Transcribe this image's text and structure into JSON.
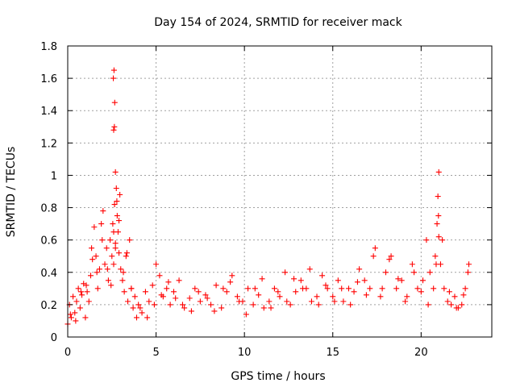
{
  "chart_data": {
    "type": "scatter",
    "title": "Day 154 of 2024, SRMTID for receiver mack",
    "xlabel": "GPS time / hours",
    "ylabel": "SRMTID / TECUs",
    "xlim": [
      0,
      24
    ],
    "ylim": [
      0,
      1.8
    ],
    "xticks": [
      0,
      5,
      10,
      15,
      20
    ],
    "xtick_labels": [
      "0",
      "5",
      "10",
      "15",
      "20"
    ],
    "yticks": [
      0,
      0.2,
      0.4,
      0.6,
      0.8,
      1,
      1.2,
      1.4,
      1.6,
      1.8
    ],
    "ytick_labels": [
      "0",
      "0.2",
      "0.4",
      "0.6",
      "0.8",
      "1",
      "1.2",
      "1.4",
      "1.6",
      "1.8"
    ],
    "grid": true,
    "marker": "+",
    "color": "#ff0000",
    "series": [
      {
        "name": "SRMTID",
        "x": [
          0.0,
          0.1,
          0.2,
          0.3,
          0.4,
          0.5,
          0.6,
          0.7,
          0.8,
          0.9,
          1.0,
          1.1,
          1.2,
          1.3,
          1.4,
          1.5,
          1.6,
          1.7,
          1.8,
          1.9,
          2.0,
          2.1,
          2.2,
          2.3,
          2.4,
          2.5,
          2.55,
          2.6,
          2.65,
          2.7,
          2.75,
          2.8,
          2.85,
          2.9,
          2.95,
          3.0,
          3.1,
          3.2,
          3.3,
          3.4,
          3.5,
          3.6,
          3.7,
          3.8,
          3.9,
          4.0,
          4.2,
          4.4,
          4.6,
          4.8,
          5.0,
          5.2,
          5.4,
          5.6,
          5.8,
          6.0,
          6.3,
          6.6,
          6.9,
          7.2,
          7.5,
          7.8,
          8.1,
          8.4,
          8.7,
          9.0,
          9.3,
          9.6,
          9.9,
          10.2,
          10.5,
          10.8,
          11.1,
          11.4,
          11.7,
          12.0,
          12.3,
          12.6,
          12.9,
          13.2,
          13.5,
          13.8,
          14.1,
          14.4,
          14.7,
          15.0,
          15.3,
          15.6,
          15.9,
          16.2,
          16.5,
          16.8,
          17.1,
          17.4,
          17.7,
          18.0,
          18.3,
          18.6,
          18.9,
          19.2,
          19.5,
          19.8,
          20.1,
          20.3,
          20.5,
          20.7,
          20.8,
          20.9,
          21.0,
          21.1,
          21.3,
          21.5,
          21.7,
          21.9,
          22.1,
          22.3,
          22.5,
          22.7,
          0.15,
          0.45,
          0.75,
          1.05,
          1.35,
          1.65,
          1.95,
          2.25,
          2.45,
          2.6,
          2.7,
          2.9,
          3.15,
          3.35,
          3.6,
          4.1,
          4.5,
          4.9,
          5.3,
          5.7,
          6.1,
          6.5,
          7.0,
          7.4,
          7.9,
          8.3,
          8.8,
          9.2,
          9.7,
          10.1,
          10.6,
          11.0,
          11.5,
          11.9,
          12.4,
          12.8,
          13.3,
          13.7,
          14.2,
          14.6,
          15.1,
          15.5,
          16.0,
          16.4,
          16.9,
          17.3,
          17.8,
          18.2,
          18.7,
          19.1,
          19.6,
          20.0,
          20.4,
          20.85,
          21.2,
          21.6,
          22.0,
          22.4,
          22.65,
          2.58,
          2.62,
          2.66,
          2.64,
          2.6,
          2.7,
          2.78,
          20.95,
          21.0,
          20.98
        ],
        "y": [
          0.08,
          0.2,
          0.12,
          0.25,
          0.15,
          0.22,
          0.3,
          0.18,
          0.26,
          0.33,
          0.12,
          0.28,
          0.22,
          0.38,
          0.48,
          0.68,
          0.5,
          0.3,
          0.42,
          0.7,
          0.78,
          0.45,
          0.55,
          0.35,
          0.6,
          0.5,
          0.7,
          0.45,
          0.82,
          0.58,
          0.92,
          0.75,
          0.65,
          0.52,
          0.88,
          0.42,
          0.35,
          0.28,
          0.5,
          0.22,
          0.6,
          0.3,
          0.18,
          0.25,
          0.12,
          0.2,
          0.15,
          0.28,
          0.22,
          0.32,
          0.45,
          0.38,
          0.25,
          0.3,
          0.2,
          0.28,
          0.35,
          0.18,
          0.24,
          0.3,
          0.22,
          0.26,
          0.2,
          0.32,
          0.18,
          0.28,
          0.38,
          0.25,
          0.22,
          0.3,
          0.2,
          0.26,
          0.18,
          0.22,
          0.3,
          0.25,
          0.4,
          0.2,
          0.28,
          0.35,
          0.3,
          0.22,
          0.25,
          0.38,
          0.3,
          0.25,
          0.35,
          0.22,
          0.3,
          0.28,
          0.42,
          0.35,
          0.3,
          0.55,
          0.25,
          0.4,
          0.5,
          0.3,
          0.35,
          0.25,
          0.45,
          0.3,
          0.35,
          0.6,
          0.4,
          0.3,
          0.5,
          0.7,
          0.62,
          0.45,
          0.3,
          0.22,
          0.2,
          0.25,
          0.18,
          0.2,
          0.3,
          0.45,
          0.14,
          0.1,
          0.28,
          0.32,
          0.55,
          0.4,
          0.6,
          0.42,
          0.32,
          0.65,
          0.55,
          0.72,
          0.4,
          0.52,
          0.3,
          0.18,
          0.12,
          0.2,
          0.26,
          0.34,
          0.24,
          0.2,
          0.16,
          0.28,
          0.24,
          0.16,
          0.3,
          0.34,
          0.22,
          0.14,
          0.3,
          0.36,
          0.18,
          0.28,
          0.22,
          0.36,
          0.3,
          0.42,
          0.2,
          0.32,
          0.22,
          0.3,
          0.2,
          0.34,
          0.26,
          0.5,
          0.3,
          0.48,
          0.36,
          0.22,
          0.4,
          0.28,
          0.2,
          0.45,
          0.6,
          0.28,
          0.18,
          0.26,
          0.4,
          1.6,
          1.65,
          1.45,
          1.3,
          1.28,
          1.02,
          0.84,
          0.87,
          1.02,
          0.75
        ]
      }
    ]
  }
}
